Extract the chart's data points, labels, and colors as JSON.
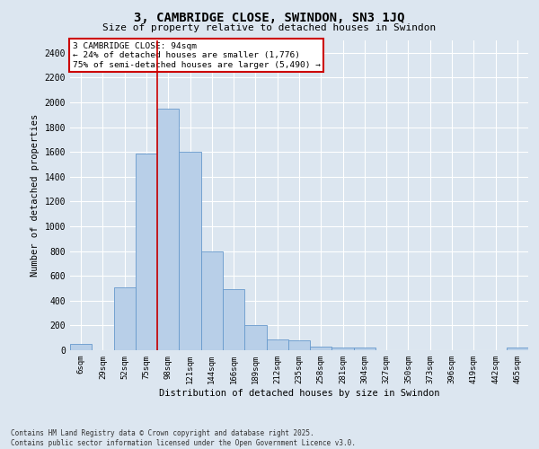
{
  "title": "3, CAMBRIDGE CLOSE, SWINDON, SN3 1JQ",
  "subtitle": "Size of property relative to detached houses in Swindon",
  "xlabel": "Distribution of detached houses by size in Swindon",
  "ylabel": "Number of detached properties",
  "categories": [
    "6sqm",
    "29sqm",
    "52sqm",
    "75sqm",
    "98sqm",
    "121sqm",
    "144sqm",
    "166sqm",
    "189sqm",
    "212sqm",
    "235sqm",
    "258sqm",
    "281sqm",
    "304sqm",
    "327sqm",
    "350sqm",
    "373sqm",
    "396sqm",
    "419sqm",
    "442sqm",
    "465sqm"
  ],
  "values": [
    50,
    0,
    510,
    1590,
    1950,
    1600,
    800,
    490,
    200,
    85,
    80,
    30,
    20,
    20,
    0,
    0,
    0,
    0,
    0,
    0,
    20
  ],
  "bar_color": "#b8cfe8",
  "bar_edge_color": "#6699cc",
  "vline_x_index": 4,
  "vline_color": "#cc0000",
  "ylim": [
    0,
    2500
  ],
  "yticks": [
    0,
    200,
    400,
    600,
    800,
    1000,
    1200,
    1400,
    1600,
    1800,
    2000,
    2200,
    2400
  ],
  "annotation_title": "3 CAMBRIDGE CLOSE: 94sqm",
  "annotation_line1": "← 24% of detached houses are smaller (1,776)",
  "annotation_line2": "75% of semi-detached houses are larger (5,490) →",
  "annotation_box_color": "#ffffff",
  "annotation_edge_color": "#cc0000",
  "footer_line1": "Contains HM Land Registry data © Crown copyright and database right 2025.",
  "footer_line2": "Contains public sector information licensed under the Open Government Licence v3.0.",
  "bg_color": "#dce6f0",
  "plot_bg_color": "#dce6f0",
  "grid_color": "#ffffff"
}
